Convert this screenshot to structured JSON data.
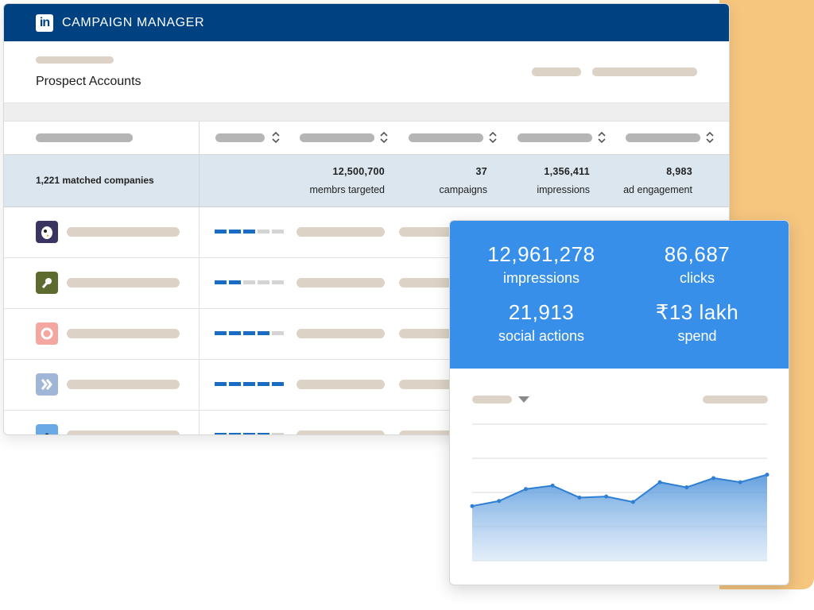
{
  "app": {
    "title": "CAMPAIGN MANAGER",
    "logo_text": "in",
    "brand_color": "#004182"
  },
  "page": {
    "title": "Prospect Accounts"
  },
  "summary": {
    "matched": "1,221 matched companies",
    "stats": [
      {
        "value": "12,500,700",
        "label": "membrs targeted"
      },
      {
        "value": "37",
        "label": "campaigns"
      },
      {
        "value": "1,356,411",
        "label": "impressions"
      },
      {
        "value": "8,983",
        "label": "ad engagement"
      }
    ]
  },
  "rows": [
    {
      "logo_color": "#3a3560",
      "logo_icon": "penguin-logo-icon",
      "engagement_level": 3
    },
    {
      "logo_color": "#5e6b2e",
      "logo_icon": "dot-link-logo-icon",
      "engagement_level": 2
    },
    {
      "logo_color": "#f3a7a0",
      "logo_icon": "ring-logo-icon",
      "engagement_level": 4
    },
    {
      "logo_color": "#9fb6d6",
      "logo_icon": "double-chevron-logo-icon",
      "engagement_level": 5
    },
    {
      "logo_color": "#6aa9e6",
      "logo_icon": "dot-logo-icon",
      "engagement_level": 4
    }
  ],
  "popup": {
    "metrics": [
      {
        "value": "12,961,278",
        "label": "impressions"
      },
      {
        "value": "86,687",
        "label": "clicks"
      },
      {
        "value": "21,913",
        "label": "social actions"
      },
      {
        "value": "₹13 lakh",
        "label": "spend"
      }
    ],
    "accent_color": "#378fe9"
  },
  "chart_data": {
    "type": "area",
    "x": [
      1,
      2,
      3,
      4,
      5,
      6,
      7,
      8,
      9,
      10,
      11,
      12
    ],
    "series": [
      {
        "values": [
          1.6,
          1.75,
          2.1,
          2.2,
          1.85,
          1.88,
          1.72,
          2.3,
          2.15,
          2.42,
          2.3,
          2.52
        ]
      }
    ],
    "ylim": [
      0,
      4
    ],
    "grid": true,
    "title": "",
    "xlabel": "",
    "ylabel": ""
  }
}
